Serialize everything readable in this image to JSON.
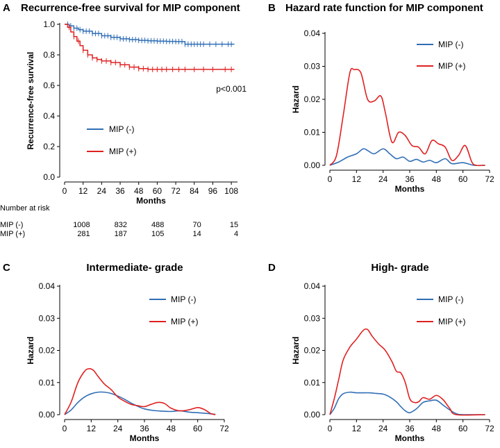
{
  "chart_data": [
    {
      "id": "A",
      "type": "line",
      "letter": "A",
      "title": "Recurrence-free survival for MIP component",
      "xlabel": "Months",
      "ylabel": "Recurrence-free survival",
      "xlim": [
        0,
        112
      ],
      "ylim": [
        0,
        1.0
      ],
      "xticks": [
        0,
        12,
        24,
        36,
        48,
        60,
        72,
        84,
        96,
        108
      ],
      "yticks": [
        0.0,
        0.2,
        0.4,
        0.6,
        0.8,
        1.0
      ],
      "ytick_labels": [
        "0.0",
        "0.2",
        "0.4",
        "0.6",
        "0.8",
        "1.0"
      ],
      "annotation": "p<0.001",
      "series": [
        {
          "name": "MIP (-)",
          "color": "#2f6db5",
          "points": [
            [
              0,
              1.0
            ],
            [
              3,
              0.99
            ],
            [
              6,
              0.975
            ],
            [
              9,
              0.965
            ],
            [
              12,
              0.955
            ],
            [
              18,
              0.94
            ],
            [
              24,
              0.925
            ],
            [
              30,
              0.915
            ],
            [
              36,
              0.905
            ],
            [
              42,
              0.9
            ],
            [
              48,
              0.895
            ],
            [
              54,
              0.892
            ],
            [
              60,
              0.89
            ],
            [
              66,
              0.888
            ],
            [
              72,
              0.887
            ],
            [
              78,
              0.87
            ],
            [
              84,
              0.87
            ],
            [
              96,
              0.87
            ],
            [
              110,
              0.87
            ]
          ],
          "censor": [
            2,
            4,
            6,
            8,
            10,
            12,
            14,
            16,
            18,
            20,
            22,
            24,
            26,
            28,
            30,
            32,
            34,
            36,
            38,
            40,
            42,
            44,
            46,
            48,
            50,
            52,
            54,
            56,
            58,
            60,
            62,
            64,
            66,
            68,
            70,
            72,
            74,
            76,
            78,
            80,
            82,
            84,
            86,
            88,
            90,
            94,
            98,
            102,
            106,
            108
          ]
        },
        {
          "name": "MIP (+)",
          "color": "#e02020",
          "points": [
            [
              0,
              1.0
            ],
            [
              2,
              0.98
            ],
            [
              4,
              0.95
            ],
            [
              6,
              0.92
            ],
            [
              8,
              0.89
            ],
            [
              10,
              0.86
            ],
            [
              12,
              0.83
            ],
            [
              15,
              0.8
            ],
            [
              18,
              0.78
            ],
            [
              21,
              0.77
            ],
            [
              24,
              0.76
            ],
            [
              30,
              0.75
            ],
            [
              36,
              0.735
            ],
            [
              42,
              0.72
            ],
            [
              48,
              0.71
            ],
            [
              54,
              0.705
            ],
            [
              60,
              0.705
            ],
            [
              72,
              0.705
            ],
            [
              84,
              0.705
            ],
            [
              96,
              0.705
            ],
            [
              110,
              0.705
            ]
          ],
          "censor": [
            3,
            6,
            9,
            12,
            15,
            18,
            21,
            24,
            27,
            30,
            33,
            36,
            39,
            42,
            45,
            48,
            51,
            54,
            57,
            60,
            63,
            66,
            70,
            74,
            78,
            84,
            90,
            96,
            104,
            108
          ]
        }
      ],
      "risk_table": {
        "title": "Number at risk",
        "times": [
          12,
          36,
          60,
          84,
          108
        ],
        "rows": [
          {
            "label": "MIP (-)",
            "values": [
              "1008",
              "832",
              "488",
              "70",
              "15"
            ]
          },
          {
            "label": "MIP (+)",
            "values": [
              "281",
              "187",
              "105",
              "14",
              "4"
            ]
          }
        ]
      }
    },
    {
      "id": "B",
      "type": "line",
      "letter": "B",
      "title": "Hazard rate function for MIP component",
      "xlabel": "Months",
      "ylabel": "Hazard",
      "xlim": [
        0,
        72
      ],
      "ylim": [
        0,
        0.04
      ],
      "xticks": [
        0,
        12,
        24,
        36,
        48,
        60,
        72
      ],
      "yticks": [
        0.0,
        0.01,
        0.02,
        0.03,
        0.04
      ],
      "ytick_labels": [
        "0.00",
        "0.01",
        "0.02",
        "0.03",
        "0.04"
      ],
      "series": [
        {
          "name": "MIP (-)",
          "color": "#2f6db5",
          "points": [
            [
              0,
              0
            ],
            [
              4,
              0.001
            ],
            [
              8,
              0.0025
            ],
            [
              12,
              0.0035
            ],
            [
              15,
              0.005
            ],
            [
              17,
              0.0045
            ],
            [
              20,
              0.0035
            ],
            [
              24,
              0.005
            ],
            [
              27,
              0.0035
            ],
            [
              30,
              0.002
            ],
            [
              33,
              0.0025
            ],
            [
              36,
              0.0012
            ],
            [
              39,
              0.0018
            ],
            [
              42,
              0.001
            ],
            [
              45,
              0.0015
            ],
            [
              48,
              0.0008
            ],
            [
              52,
              0.002
            ],
            [
              55,
              0.0005
            ],
            [
              60,
              0.0008
            ],
            [
              65,
              0
            ],
            [
              70,
              0
            ]
          ]
        },
        {
          "name": "MIP (+)",
          "color": "#e02020",
          "points": [
            [
              0,
              0
            ],
            [
              3,
              0.003
            ],
            [
              6,
              0.015
            ],
            [
              9,
              0.028
            ],
            [
              11,
              0.029
            ],
            [
              14,
              0.028
            ],
            [
              17,
              0.02
            ],
            [
              20,
              0.0195
            ],
            [
              23,
              0.021
            ],
            [
              25,
              0.016
            ],
            [
              28,
              0.007
            ],
            [
              31,
              0.01
            ],
            [
              34,
              0.009
            ],
            [
              37,
              0.006
            ],
            [
              40,
              0.0055
            ],
            [
              43,
              0.0035
            ],
            [
              46,
              0.0075
            ],
            [
              49,
              0.0065
            ],
            [
              52,
              0.0055
            ],
            [
              55,
              0.0015
            ],
            [
              58,
              0.003
            ],
            [
              61,
              0.006
            ],
            [
              64,
              0.001
            ],
            [
              66,
              0
            ],
            [
              70,
              0
            ]
          ]
        }
      ]
    },
    {
      "id": "C",
      "type": "line",
      "letter": "C",
      "title": "Intermediate- grade",
      "xlabel": "Months",
      "ylabel": "Hazard",
      "xlim": [
        0,
        72
      ],
      "ylim": [
        0,
        0.04
      ],
      "xticks": [
        0,
        12,
        24,
        36,
        48,
        60,
        72
      ],
      "yticks": [
        0.0,
        0.01,
        0.02,
        0.03,
        0.04
      ],
      "ytick_labels": [
        "0.00",
        "0.01",
        "0.02",
        "0.03",
        "0.04"
      ],
      "series": [
        {
          "name": "MIP (-)",
          "color": "#2f6db5",
          "points": [
            [
              0,
              0
            ],
            [
              3,
              0.0015
            ],
            [
              6,
              0.0038
            ],
            [
              9,
              0.0055
            ],
            [
              12,
              0.0065
            ],
            [
              15,
              0.007
            ],
            [
              18,
              0.007
            ],
            [
              21,
              0.0066
            ],
            [
              24,
              0.0058
            ],
            [
              27,
              0.0048
            ],
            [
              30,
              0.0036
            ],
            [
              33,
              0.0026
            ],
            [
              36,
              0.0018
            ],
            [
              40,
              0.0013
            ],
            [
              44,
              0.0011
            ],
            [
              48,
              0.001
            ],
            [
              52,
              0.0012
            ],
            [
              56,
              0.0008
            ],
            [
              60,
              0.0006
            ],
            [
              64,
              0.0004
            ],
            [
              68,
              0.0001
            ]
          ]
        },
        {
          "name": "MIP (+)",
          "color": "#e02020",
          "points": [
            [
              0,
              0
            ],
            [
              3,
              0.004
            ],
            [
              6,
              0.01
            ],
            [
              9,
              0.0135
            ],
            [
              11,
              0.0143
            ],
            [
              13,
              0.0138
            ],
            [
              15,
              0.012
            ],
            [
              18,
              0.0095
            ],
            [
              21,
              0.0078
            ],
            [
              24,
              0.0055
            ],
            [
              27,
              0.0042
            ],
            [
              30,
              0.0032
            ],
            [
              33,
              0.0028
            ],
            [
              36,
              0.0025
            ],
            [
              39,
              0.0032
            ],
            [
              42,
              0.0038
            ],
            [
              45,
              0.0035
            ],
            [
              48,
              0.002
            ],
            [
              52,
              0.0012
            ],
            [
              56,
              0.0015
            ],
            [
              60,
              0.0022
            ],
            [
              63,
              0.0016
            ],
            [
              66,
              0.0003
            ],
            [
              68,
              0
            ]
          ]
        }
      ]
    },
    {
      "id": "D",
      "type": "line",
      "letter": "D",
      "title": "High- grade",
      "xlabel": "Months",
      "ylabel": "Hazard",
      "xlim": [
        0,
        72
      ],
      "ylim": [
        0,
        0.04
      ],
      "xticks": [
        0,
        12,
        24,
        36,
        48,
        60,
        72
      ],
      "yticks": [
        0.0,
        0.01,
        0.02,
        0.03,
        0.04
      ],
      "ytick_labels": [
        "0.00",
        "0.01",
        "0.02",
        "0.03",
        "0.04"
      ],
      "series": [
        {
          "name": "MIP (-)",
          "color": "#2f6db5",
          "points": [
            [
              0,
              0
            ],
            [
              2,
              0.002
            ],
            [
              4,
              0.005
            ],
            [
              6,
              0.0065
            ],
            [
              9,
              0.007
            ],
            [
              12,
              0.0068
            ],
            [
              15,
              0.0068
            ],
            [
              18,
              0.0068
            ],
            [
              21,
              0.0066
            ],
            [
              24,
              0.0064
            ],
            [
              27,
              0.0055
            ],
            [
              30,
              0.004
            ],
            [
              32,
              0.0025
            ],
            [
              34,
              0.0012
            ],
            [
              36,
              0.0006
            ],
            [
              39,
              0.0018
            ],
            [
              42,
              0.0038
            ],
            [
              45,
              0.0043
            ],
            [
              48,
              0.0045
            ],
            [
              51,
              0.003
            ],
            [
              54,
              0.0015
            ],
            [
              57,
              0.0003
            ],
            [
              60,
              0
            ],
            [
              70,
              0
            ]
          ]
        },
        {
          "name": "MIP (+)",
          "color": "#e02020",
          "points": [
            [
              0,
              0
            ],
            [
              2,
              0.005
            ],
            [
              4,
              0.011
            ],
            [
              6,
              0.017
            ],
            [
              9,
              0.021
            ],
            [
              12,
              0.0235
            ],
            [
              15,
              0.0262
            ],
            [
              17,
              0.0265
            ],
            [
              19,
              0.0245
            ],
            [
              22,
              0.022
            ],
            [
              25,
              0.02
            ],
            [
              28,
              0.0165
            ],
            [
              30,
              0.0135
            ],
            [
              32,
              0.013
            ],
            [
              34,
              0.01
            ],
            [
              36,
              0.005
            ],
            [
              38,
              0.0038
            ],
            [
              40,
              0.004
            ],
            [
              42,
              0.0053
            ],
            [
              45,
              0.0048
            ],
            [
              48,
              0.006
            ],
            [
              51,
              0.0047
            ],
            [
              54,
              0.002
            ],
            [
              57,
              0
            ],
            [
              70,
              0
            ]
          ]
        }
      ]
    }
  ]
}
